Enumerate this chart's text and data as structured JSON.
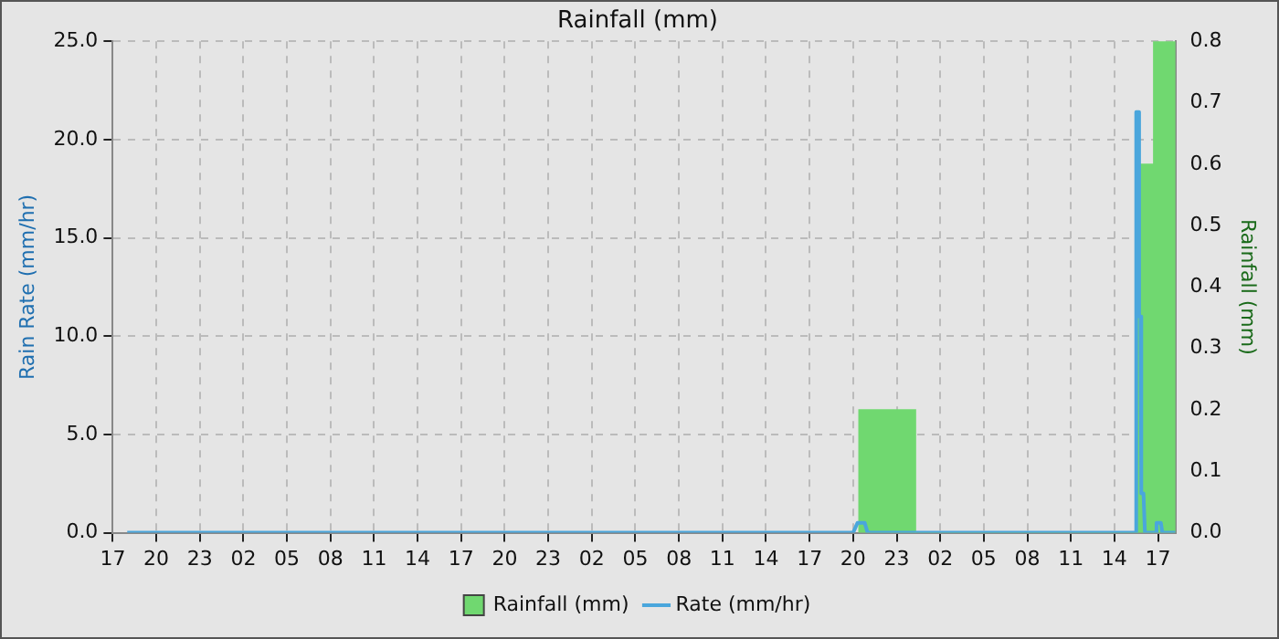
{
  "chart_data": {
    "type": "line",
    "title": "Rainfall (mm)",
    "ylabel": "Rain Rate (mm/hr)",
    "y2label": "Rainfall (mm)",
    "xlim": [
      "--01-01T17:00",
      "--01-04T18:12"
    ],
    "xticks": [
      {
        "value": "--01-01T17:00",
        "label": "17"
      },
      {
        "value": "--01-01T20:00",
        "label": "20"
      },
      {
        "value": "--01-01T23:00",
        "label": "23"
      },
      {
        "value": "--01-02T02:00",
        "label": "02"
      },
      {
        "value": "--01-02T05:00",
        "label": "05"
      },
      {
        "value": "--01-02T08:00",
        "label": "08"
      },
      {
        "value": "--01-02T11:00",
        "label": "11"
      },
      {
        "value": "--01-02T14:00",
        "label": "14"
      },
      {
        "value": "--01-02T17:00",
        "label": "17"
      },
      {
        "value": "--01-02T20:00",
        "label": "20"
      },
      {
        "value": "--01-02T23:00",
        "label": "23"
      },
      {
        "value": "--01-03T02:00",
        "label": "02"
      },
      {
        "value": "--01-03T05:00",
        "label": "05"
      },
      {
        "value": "--01-03T08:00",
        "label": "08"
      },
      {
        "value": "--01-03T11:00",
        "label": "11"
      },
      {
        "value": "--01-03T14:00",
        "label": "14"
      },
      {
        "value": "--01-03T17:00",
        "label": "17"
      },
      {
        "value": "--01-03T20:00",
        "label": "20"
      },
      {
        "value": "--01-03T23:00",
        "label": "23"
      },
      {
        "value": "--01-04T02:00",
        "label": "02"
      },
      {
        "value": "--01-04T05:00",
        "label": "05"
      },
      {
        "value": "--01-04T08:00",
        "label": "08"
      },
      {
        "value": "--01-04T11:00",
        "label": "11"
      },
      {
        "value": "--01-04T14:00",
        "label": "14"
      },
      {
        "value": "--01-04T17:00",
        "label": "17"
      }
    ],
    "ylim": [
      0,
      25
    ],
    "yticks": [
      {
        "value": 0,
        "label": "0.0"
      },
      {
        "value": 5,
        "label": "5.0"
      },
      {
        "value": 10,
        "label": "10.0"
      },
      {
        "value": 15,
        "label": "15.0"
      },
      {
        "value": 20,
        "label": "20.0"
      },
      {
        "value": 25,
        "label": "25.0"
      }
    ],
    "y2lim": [
      0,
      0.8
    ],
    "y2ticks": [
      {
        "value": 0,
        "label": "0.0"
      },
      {
        "value": 0.1,
        "label": "0.1"
      },
      {
        "value": 0.2,
        "label": "0.2"
      },
      {
        "value": 0.3,
        "label": "0.3"
      },
      {
        "value": 0.4,
        "label": "0.4"
      },
      {
        "value": 0.5,
        "label": "0.5"
      },
      {
        "value": 0.6,
        "label": "0.6"
      },
      {
        "value": 0.7,
        "label": "0.7"
      },
      {
        "value": 0.8,
        "label": "0.8"
      }
    ],
    "grid": true,
    "legend": "bottom",
    "marker": "none",
    "line_style": "solid",
    "series": [
      {
        "name": "Rainfall (mm)",
        "type": "histogram",
        "axis": "y2",
        "color": "#70d870",
        "bins": [
          "--01-03T20:24",
          "--01-04T00:18",
          "--01-04T15:36",
          "--01-04T16:42",
          "--01-04T18:12"
        ],
        "values": [
          0.2,
          0,
          0.6,
          0.8
        ]
      },
      {
        "name": "Rate (mm/hr)",
        "axis": "y",
        "color": "#4aa6dc",
        "x": [
          "--01-01T18:00",
          "--01-03T20:00",
          "--01-03T20:18",
          "--01-03T20:48",
          "--01-03T21:00",
          "--01-04T15:24",
          "--01-04T15:30",
          "--01-04T15:39",
          "--01-04T15:42",
          "--01-04T15:48",
          "--01-04T15:51",
          "--01-04T16:00",
          "--01-04T16:06",
          "--01-04T16:48",
          "--01-04T16:54",
          "--01-04T17:12",
          "--01-04T17:18",
          "--01-04T18:12"
        ],
        "values": [
          0,
          0,
          0.5,
          0.5,
          0,
          0,
          21.4,
          21.4,
          11,
          11,
          2,
          2,
          0,
          0,
          0.5,
          0.5,
          0,
          0
        ]
      }
    ]
  }
}
